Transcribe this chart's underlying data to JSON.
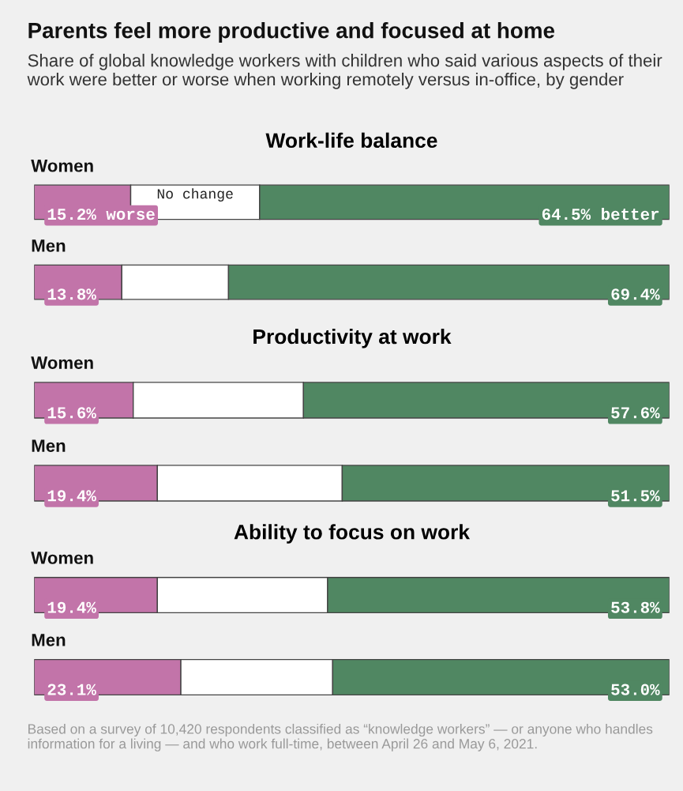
{
  "chart_data": [
    {
      "type": "other",
      "title": "Parents feel more productive and focused at home",
      "subtitle": "Share of global knowledge workers with children who said various aspects of their work were better or worse when working remotely versus in-office, by gender"
    },
    {
      "type": "bar",
      "orientation": "horizontal",
      "stacked": true,
      "title": "Work-life balance",
      "categories": [
        "Women",
        "Men"
      ],
      "xlim": [
        0,
        100
      ],
      "tick_labels": false,
      "series": [
        {
          "color": "#c274a9",
          "values": [
            15.2,
            13.8
          ],
          "value_labels": [
            "15.2% worse",
            "13.8%"
          ]
        },
        {
          "color": "#ffffff",
          "values": [
            20.3,
            16.8
          ],
          "value_labels": [
            "No change",
            null
          ]
        },
        {
          "color": "#508762",
          "values": [
            64.5,
            69.4
          ],
          "value_labels": [
            "64.5% better",
            "69.4%"
          ]
        }
      ]
    },
    {
      "type": "bar",
      "orientation": "horizontal",
      "stacked": true,
      "title": "Productivity at work",
      "categories": [
        "Women",
        "Men"
      ],
      "xlim": [
        0,
        100
      ],
      "tick_labels": false,
      "series": [
        {
          "color": "#c274a9",
          "values": [
            15.6,
            19.4
          ],
          "value_labels": [
            "15.6%",
            "19.4%"
          ]
        },
        {
          "color": "#ffffff",
          "values": [
            26.8,
            29.1
          ],
          "value_labels": [
            null,
            null
          ]
        },
        {
          "color": "#508762",
          "values": [
            57.6,
            51.5
          ],
          "value_labels": [
            "57.6%",
            "51.5%"
          ]
        }
      ]
    },
    {
      "type": "bar",
      "orientation": "horizontal",
      "stacked": true,
      "title": "Ability to focus on work",
      "categories": [
        "Women",
        "Men"
      ],
      "xlim": [
        0,
        100
      ],
      "tick_labels": false,
      "series": [
        {
          "color": "#c274a9",
          "values": [
            19.4,
            23.1
          ],
          "value_labels": [
            "19.4%",
            "23.1%"
          ]
        },
        {
          "color": "#ffffff",
          "values": [
            26.8,
            23.9
          ],
          "value_labels": [
            null,
            null
          ]
        },
        {
          "color": "#508762",
          "values": [
            53.8,
            53.0
          ],
          "value_labels": [
            "53.8%",
            "53.0%"
          ]
        }
      ],
      "annotations": [
        "Based on a survey of 10,420 respondents classified as “knowledge workers” — or anyone who handles information for a living — and who work full-time, between April 26 and May 6, 2021."
      ]
    }
  ]
}
